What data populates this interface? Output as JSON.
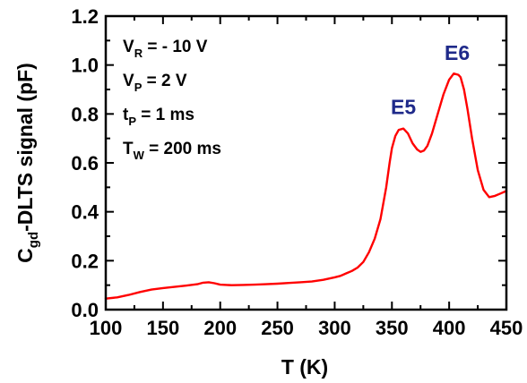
{
  "chart_data": {
    "type": "line",
    "xlabel": "T (K)",
    "ylabel": {
      "main": "C",
      "sub": "gd",
      "rest": "-DLTS signal (pF)"
    },
    "xlim": [
      100,
      450
    ],
    "ylim": [
      0.0,
      1.2
    ],
    "x_ticks": [
      100,
      150,
      200,
      250,
      300,
      350,
      400,
      450
    ],
    "y_ticks": [
      0.0,
      0.2,
      0.4,
      0.6,
      0.8,
      1.0,
      1.2
    ],
    "x_tick_labels": [
      "100",
      "150",
      "200",
      "250",
      "300",
      "350",
      "400",
      "450"
    ],
    "y_tick_labels": [
      "0.0",
      "0.2",
      "0.4",
      "0.6",
      "0.8",
      "1.0",
      "1.2"
    ],
    "grid": false,
    "series": [
      {
        "color": "#ff0000",
        "x": [
          100,
          110,
          120,
          130,
          140,
          150,
          160,
          170,
          180,
          185,
          190,
          195,
          200,
          210,
          220,
          230,
          240,
          250,
          260,
          270,
          280,
          290,
          300,
          305,
          310,
          315,
          320,
          325,
          330,
          335,
          340,
          345,
          348,
          350,
          353,
          356,
          360,
          364,
          368,
          372,
          375,
          378,
          381,
          385,
          390,
          395,
          400,
          404,
          408,
          410,
          413,
          416,
          420,
          425,
          430,
          435,
          440,
          445,
          450
        ],
        "y": [
          0.045,
          0.05,
          0.06,
          0.072,
          0.082,
          0.088,
          0.093,
          0.098,
          0.104,
          0.11,
          0.112,
          0.108,
          0.102,
          0.1,
          0.101,
          0.102,
          0.104,
          0.106,
          0.109,
          0.112,
          0.115,
          0.122,
          0.132,
          0.138,
          0.148,
          0.158,
          0.172,
          0.195,
          0.235,
          0.29,
          0.37,
          0.5,
          0.6,
          0.66,
          0.71,
          0.735,
          0.74,
          0.72,
          0.68,
          0.655,
          0.645,
          0.65,
          0.67,
          0.72,
          0.8,
          0.88,
          0.94,
          0.965,
          0.96,
          0.95,
          0.9,
          0.82,
          0.7,
          0.57,
          0.49,
          0.46,
          0.465,
          0.475,
          0.485
        ]
      }
    ],
    "annotations": [
      {
        "main": "V",
        "sub": "R",
        "rest": " = - 10 V"
      },
      {
        "main": "V",
        "sub": "P",
        "rest": " = 2 V"
      },
      {
        "main": "t",
        "sub": "P",
        "rest": " = 1 ms"
      },
      {
        "main": "T",
        "sub": "W",
        "rest": " = 200 ms"
      }
    ],
    "peak_labels": [
      {
        "text": "E5",
        "x": 360,
        "y": 0.8,
        "color": "#1f2a8a"
      },
      {
        "text": "E6",
        "x": 407,
        "y": 1.02,
        "color": "#1f2a8a"
      }
    ]
  }
}
